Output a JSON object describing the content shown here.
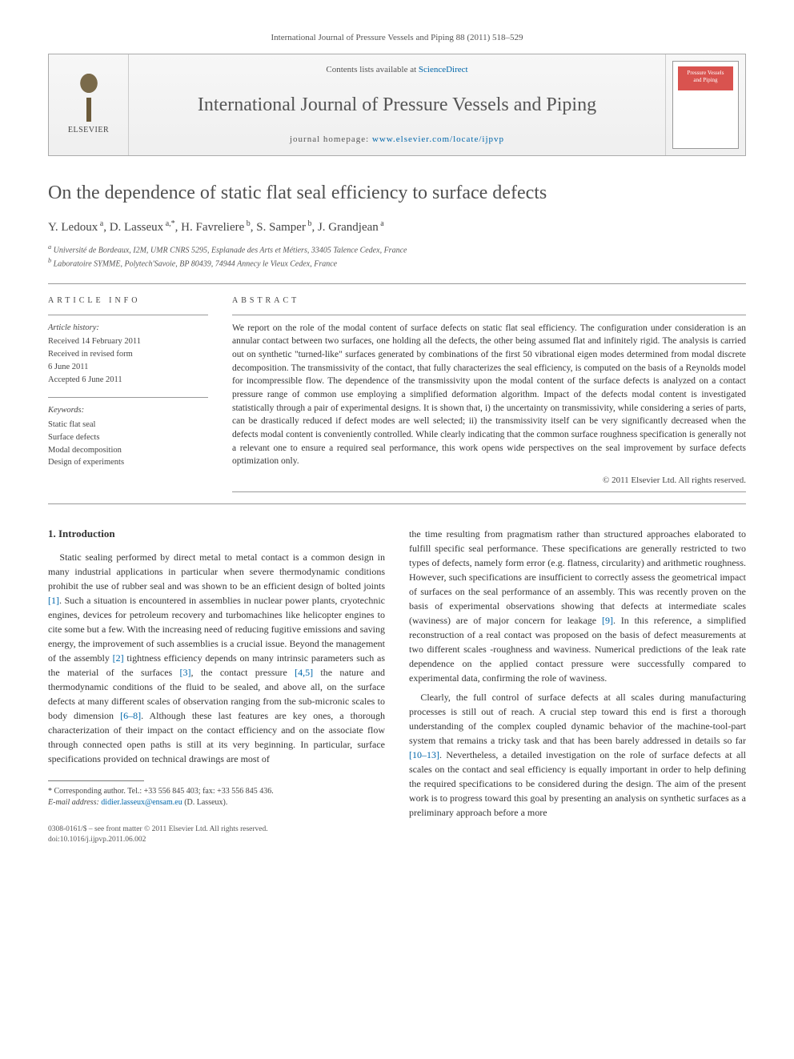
{
  "citation": "International Journal of Pressure Vessels and Piping 88 (2011) 518–529",
  "header": {
    "publisher": "ELSEVIER",
    "contents_prefix": "Contents lists available at ",
    "contents_link": "ScienceDirect",
    "journal_name": "International Journal of Pressure Vessels and Piping",
    "homepage_prefix": "journal homepage: ",
    "homepage_url": "www.elsevier.com/locate/ijpvp",
    "cover_title": "Pressure Vessels and Piping"
  },
  "article": {
    "title": "On the dependence of static flat seal efficiency to surface defects",
    "authors_html": "Y. Ledoux ᵃ, D. Lasseux ᵃ·*, H. Favreliere ᵇ, S. Samper ᵇ, J. Grandjean ᵃ",
    "authors": [
      {
        "name": "Y. Ledoux",
        "aff": "a"
      },
      {
        "name": "D. Lasseux",
        "aff": "a",
        "corresponding": true
      },
      {
        "name": "H. Favreliere",
        "aff": "b"
      },
      {
        "name": "S. Samper",
        "aff": "b"
      },
      {
        "name": "J. Grandjean",
        "aff": "a"
      }
    ],
    "affiliations": [
      {
        "key": "a",
        "text": "Université de Bordeaux, I2M, UMR CNRS 5295, Esplanade des Arts et Métiers, 33405 Talence Cedex, France"
      },
      {
        "key": "b",
        "text": "Laboratoire SYMME, Polytech'Savoie, BP 80439, 74944 Annecy le Vieux Cedex, France"
      }
    ]
  },
  "info": {
    "heading": "ARTICLE INFO",
    "history_label": "Article history:",
    "history": [
      "Received 14 February 2011",
      "Received in revised form",
      "6 June 2011",
      "Accepted 6 June 2011"
    ],
    "keywords_label": "Keywords:",
    "keywords": [
      "Static flat seal",
      "Surface defects",
      "Modal decomposition",
      "Design of experiments"
    ]
  },
  "abstract": {
    "heading": "ABSTRACT",
    "text": "We report on the role of the modal content of surface defects on static flat seal efficiency. The configuration under consideration is an annular contact between two surfaces, one holding all the defects, the other being assumed flat and infinitely rigid. The analysis is carried out on synthetic \"turned-like\" surfaces generated by combinations of the first 50 vibrational eigen modes determined from modal discrete decomposition. The transmissivity of the contact, that fully characterizes the seal efficiency, is computed on the basis of a Reynolds model for incompressible flow. The dependence of the transmissivity upon the modal content of the surface defects is analyzed on a contact pressure range of common use employing a simplified deformation algorithm. Impact of the defects modal content is investigated statistically through a pair of experimental designs. It is shown that, i) the uncertainty on transmissivity, while considering a series of parts, can be drastically reduced if defect modes are well selected; ii) the transmissivity itself can be very significantly decreased when the defects modal content is conveniently controlled. While clearly indicating that the common surface roughness specification is generally not a relevant one to ensure a required seal performance, this work opens wide perspectives on the seal improvement by surface defects optimization only.",
    "copyright": "© 2011 Elsevier Ltd. All rights reserved."
  },
  "body": {
    "section_heading": "1. Introduction",
    "col1": "Static sealing performed by direct metal to metal contact is a common design in many industrial applications in particular when severe thermodynamic conditions prohibit the use of rubber seal and was shown to be an efficient design of bolted joints [1]. Such a situation is encountered in assemblies in nuclear power plants, cryotechnic engines, devices for petroleum recovery and turbomachines like helicopter engines to cite some but a few. With the increasing need of reducing fugitive emissions and saving energy, the improvement of such assemblies is a crucial issue. Beyond the management of the assembly [2] tightness efficiency depends on many intrinsic parameters such as the material of the surfaces [3], the contact pressure [4,5] the nature and thermodynamic conditions of the fluid to be sealed, and above all, on the surface defects at many different scales of observation ranging from the sub-micronic scales to body dimension [6–8]. Although these last features are key ones, a thorough characterization of their impact on the contact efficiency and on the associate flow through connected open paths is still at its very beginning. In particular, surface specifications provided on technical drawings are most of",
    "col2": "the time resulting from pragmatism rather than structured approaches elaborated to fulfill specific seal performance. These specifications are generally restricted to two types of defects, namely form error (e.g. flatness, circularity) and arithmetic roughness. However, such specifications are insufficient to correctly assess the geometrical impact of surfaces on the seal performance of an assembly. This was recently proven on the basis of experimental observations showing that defects at intermediate scales (waviness) are of major concern for leakage [9]. In this reference, a simplified reconstruction of a real contact was proposed on the basis of defect measurements at two different scales -roughness and waviness. Numerical predictions of the leak rate dependence on the applied contact pressure were successfully compared to experimental data, confirming the role of waviness.",
    "col2b": "Clearly, the full control of surface defects at all scales during manufacturing processes is still out of reach. A crucial step toward this end is first a thorough understanding of the complex coupled dynamic behavior of the machine-tool-part system that remains a tricky task and that has been barely addressed in details so far [10–13]. Nevertheless, a detailed investigation on the role of surface defects at all scales on the contact and seal efficiency is equally important in order to help defining the required specifications to be considered during the design. The aim of the present work is to progress toward this goal by presenting an analysis on synthetic surfaces as a preliminary approach before a more"
  },
  "footnote": {
    "corr": "* Corresponding author. Tel.: +33 556 845 403; fax: +33 556 845 436.",
    "email_label": "E-mail address:",
    "email": "didier.lasseux@ensam.eu",
    "email_who": "(D. Lasseux)."
  },
  "bottom": {
    "line1": "0308-0161/$ – see front matter © 2011 Elsevier Ltd. All rights reserved.",
    "line2": "doi:10.1016/j.ijpvp.2011.06.002"
  },
  "refs_inline": [
    "[1]",
    "[2]",
    "[3]",
    "[4,5]",
    "[6–8]",
    "[9]",
    "[10–13]"
  ],
  "colors": {
    "link": "#0066aa",
    "text": "#333333",
    "muted": "#555555",
    "rule": "#999999",
    "cover_accent": "#d9534f",
    "background": "#ffffff"
  },
  "typography": {
    "body_pt": 12,
    "title_pt": 24,
    "journal_pt": 24,
    "abstract_pt": 11.5,
    "info_pt": 10.5,
    "citation_pt": 11,
    "footnote_pt": 10
  }
}
